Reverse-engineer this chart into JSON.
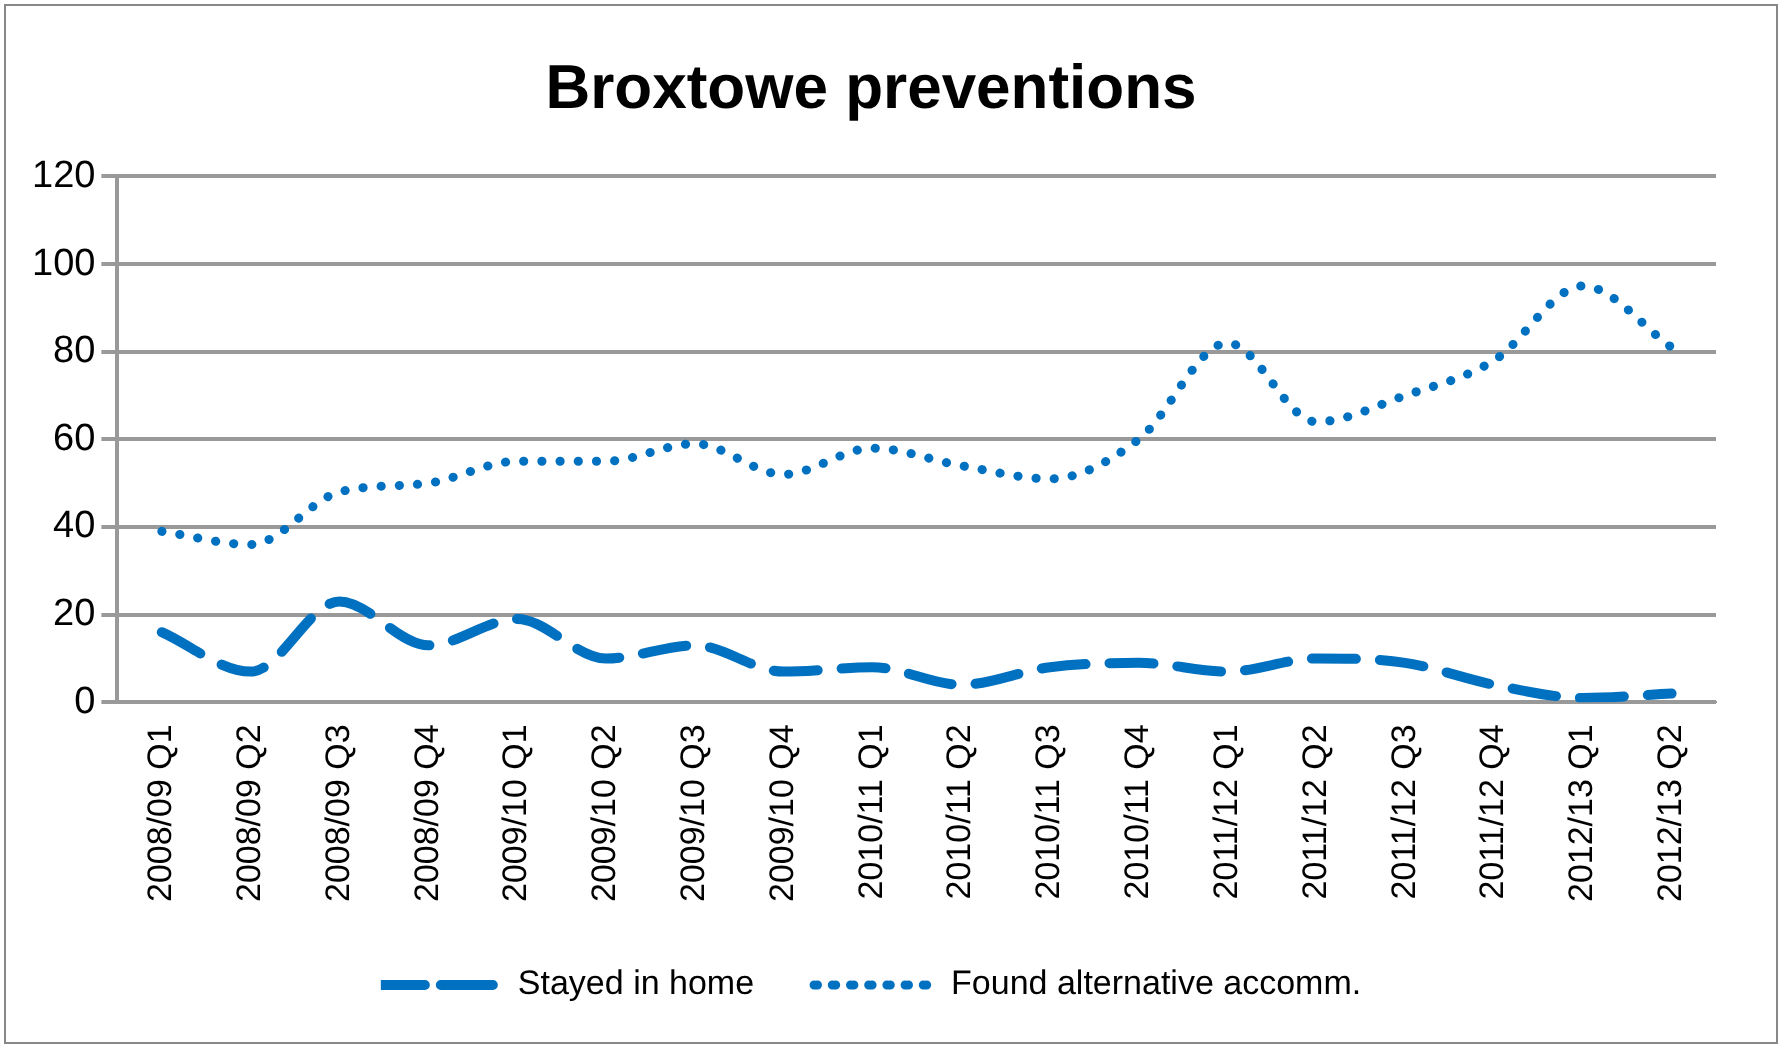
{
  "chart_data": {
    "type": "line",
    "title": "Broxtowe preventions",
    "categories": [
      "2008/09 Q1",
      "2008/09 Q2",
      "2008/09 Q3",
      "2008/09 Q4",
      "2009/10 Q1",
      "2009/10 Q2",
      "2009/10 Q3",
      "2009/10 Q4",
      "2010/11 Q1",
      "2010/11 Q2",
      "2010/11 Q3",
      "2010/11 Q4",
      "2011/12 Q1",
      "2011/12 Q2",
      "2011/12 Q3",
      "2011/12 Q4",
      "2012/13 Q1",
      "2012/13 Q2"
    ],
    "series": [
      {
        "name": "Stayed in home",
        "color": "#0070c0",
        "line_style": "dashed",
        "values": [
          16,
          7,
          23,
          13,
          19,
          10,
          13,
          7,
          8,
          4,
          8,
          9,
          7,
          10,
          9,
          4,
          1,
          2
        ]
      },
      {
        "name": "Found alternative accomm.",
        "color": "#0070c0",
        "line_style": "dotted",
        "values": [
          39,
          36,
          48,
          50,
          55,
          55,
          59,
          52,
          58,
          54,
          51,
          60,
          82,
          64,
          70,
          78,
          95,
          81
        ]
      }
    ],
    "ylim": [
      0,
      120
    ],
    "yticks": [
      0,
      20,
      40,
      60,
      80,
      100,
      120
    ],
    "grid": "y",
    "legend": "bottom",
    "marker": "none"
  }
}
